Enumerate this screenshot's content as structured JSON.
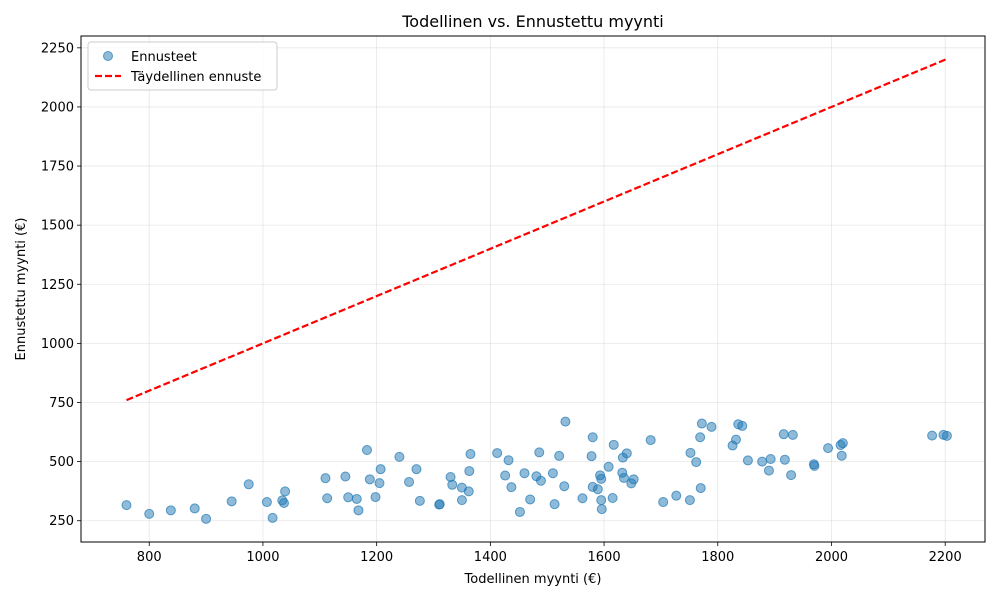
{
  "chart_data": {
    "type": "scatter",
    "title": "Todellinen vs. Ennustettu myynti",
    "xlabel": "Todellinen myynti (€)",
    "ylabel": "Ennustettu myynti (€)",
    "xlim": [
      680,
      2270
    ],
    "ylim": [
      160,
      2300
    ],
    "xticks": [
      "800",
      "1000",
      "1200",
      "1400",
      "1600",
      "1800",
      "2000",
      "2200"
    ],
    "yticks": [
      "250",
      "500",
      "750",
      "1000",
      "1250",
      "1500",
      "1750",
      "2000",
      "2250"
    ],
    "grid": true,
    "legend_position": "top-left",
    "colors": {
      "points": "#1f77b4",
      "line": "#ff0000"
    },
    "series": [
      {
        "name": "Ennusteet",
        "kind": "scatter",
        "points": [
          [
            760,
            316
          ],
          [
            800,
            279
          ],
          [
            838,
            294
          ],
          [
            880,
            302
          ],
          [
            900,
            258
          ],
          [
            945,
            332
          ],
          [
            975,
            404
          ],
          [
            1007,
            329
          ],
          [
            1017,
            262
          ],
          [
            1034,
            336
          ],
          [
            1037,
            325
          ],
          [
            1039,
            374
          ],
          [
            1110,
            430
          ],
          [
            1113,
            345
          ],
          [
            1145,
            437
          ],
          [
            1150,
            349
          ],
          [
            1165,
            342
          ],
          [
            1168,
            294
          ],
          [
            1183,
            549
          ],
          [
            1188,
            425
          ],
          [
            1198,
            350
          ],
          [
            1205,
            409
          ],
          [
            1207,
            468
          ],
          [
            1240,
            520
          ],
          [
            1257,
            414
          ],
          [
            1270,
            468
          ],
          [
            1276,
            334
          ],
          [
            1310,
            318
          ],
          [
            1311,
            320
          ],
          [
            1330,
            435
          ],
          [
            1333,
            402
          ],
          [
            1350,
            390
          ],
          [
            1350,
            337
          ],
          [
            1362,
            374
          ],
          [
            1363,
            460
          ],
          [
            1365,
            532
          ],
          [
            1412,
            536
          ],
          [
            1426,
            441
          ],
          [
            1432,
            506
          ],
          [
            1437,
            392
          ],
          [
            1460,
            451
          ],
          [
            1470,
            340
          ],
          [
            1481,
            438
          ],
          [
            1486,
            539
          ],
          [
            1489,
            419
          ],
          [
            1452,
            287
          ],
          [
            1510,
            451
          ],
          [
            1513,
            320
          ],
          [
            1521,
            524
          ],
          [
            1530,
            396
          ],
          [
            1532,
            669
          ],
          [
            1562,
            345
          ],
          [
            1578,
            523
          ],
          [
            1580,
            393
          ],
          [
            1580,
            603
          ],
          [
            1589,
            383
          ],
          [
            1593,
            442
          ],
          [
            1595,
            427
          ],
          [
            1595,
            337
          ],
          [
            1596,
            299
          ],
          [
            1608,
            478
          ],
          [
            1615,
            346
          ],
          [
            1617,
            571
          ],
          [
            1632,
            453
          ],
          [
            1633,
            517
          ],
          [
            1635,
            431
          ],
          [
            1640,
            535
          ],
          [
            1648,
            408
          ],
          [
            1652,
            425
          ],
          [
            1682,
            591
          ],
          [
            1704,
            329
          ],
          [
            1727,
            356
          ],
          [
            1751,
            337
          ],
          [
            1752,
            537
          ],
          [
            1762,
            498
          ],
          [
            1769,
            603
          ],
          [
            1770,
            388
          ],
          [
            1772,
            661
          ],
          [
            1789,
            647
          ],
          [
            1826,
            568
          ],
          [
            1832,
            593
          ],
          [
            1836,
            658
          ],
          [
            1843,
            651
          ],
          [
            1853,
            505
          ],
          [
            1878,
            500
          ],
          [
            1890,
            462
          ],
          [
            1893,
            511
          ],
          [
            1916,
            616
          ],
          [
            1918,
            508
          ],
          [
            1929,
            443
          ],
          [
            1932,
            613
          ],
          [
            1969,
            489
          ],
          [
            1970,
            482
          ],
          [
            1994,
            557
          ],
          [
            2016,
            570
          ],
          [
            2018,
            525
          ],
          [
            2020,
            578
          ],
          [
            2177,
            610
          ],
          [
            2197,
            613
          ],
          [
            2203,
            609
          ]
        ]
      },
      {
        "name": "Täydellinen ennuste",
        "kind": "line",
        "points": [
          [
            760,
            760
          ],
          [
            2203,
            2203
          ]
        ]
      }
    ]
  }
}
